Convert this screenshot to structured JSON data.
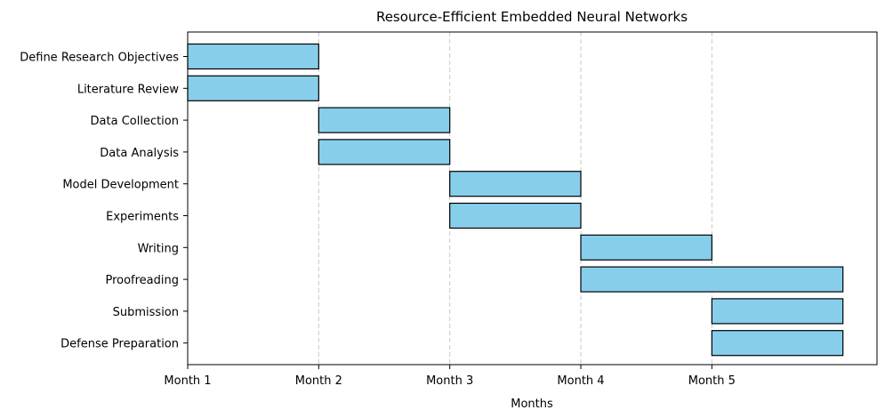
{
  "chart_data": {
    "type": "bar",
    "orientation": "horizontal-gantt",
    "title": "Resource-Efficient Embedded Neural Networks",
    "xlabel": "Months",
    "ylabel": "",
    "x_ticks": [
      "Month 1",
      "Month 2",
      "Month 3",
      "Month 4",
      "Month 5"
    ],
    "xlim": [
      0,
      5.26
    ],
    "grid": "x-dashed",
    "bar_color": "#87ceeb",
    "edge_color": "#000000",
    "tasks": [
      {
        "name": "Define Research Objectives",
        "start": 0,
        "duration": 1
      },
      {
        "name": "Literature Review",
        "start": 0,
        "duration": 1
      },
      {
        "name": "Data Collection",
        "start": 1,
        "duration": 1
      },
      {
        "name": "Data Analysis",
        "start": 1,
        "duration": 1
      },
      {
        "name": "Model Development",
        "start": 2,
        "duration": 1
      },
      {
        "name": "Experiments",
        "start": 2,
        "duration": 1
      },
      {
        "name": "Writing",
        "start": 3,
        "duration": 1
      },
      {
        "name": "Proofreading",
        "start": 3,
        "duration": 2
      },
      {
        "name": "Submission",
        "start": 4,
        "duration": 1
      },
      {
        "name": "Defense Preparation",
        "start": 4,
        "duration": 1
      }
    ]
  }
}
